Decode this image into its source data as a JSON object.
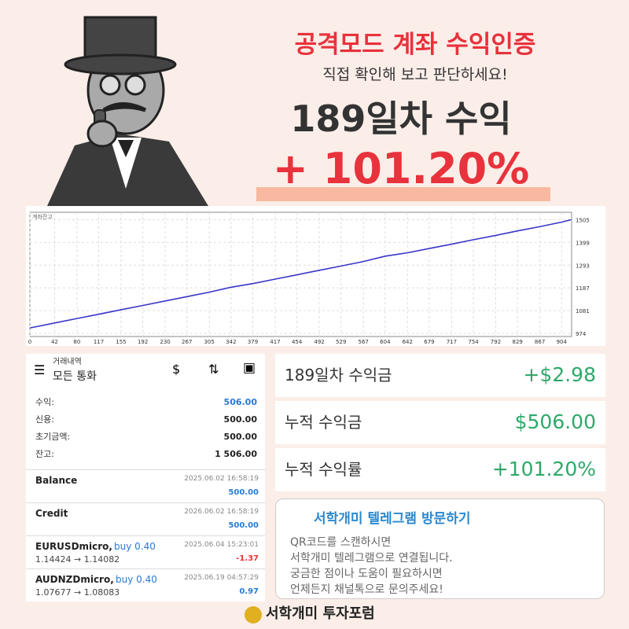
{
  "header": {
    "title": "공격모드 계좌 수익인증",
    "subtitle": "직접 확인해 보고 판단하세요!",
    "days": "189일차 수익",
    "return": "+ 101.20%"
  },
  "chart_data": {
    "type": "line",
    "title": "계좌잔고",
    "color": "#3a36c8",
    "grid": true,
    "x": [
      0,
      42,
      80,
      117,
      155,
      192,
      230,
      267,
      305,
      342,
      379,
      417,
      454,
      492,
      529,
      567,
      604,
      642,
      679,
      717,
      754,
      792,
      829,
      867,
      904,
      920
    ],
    "values": [
      1000,
      1023,
      1044,
      1064,
      1085,
      1105,
      1126,
      1146,
      1167,
      1190,
      1207,
      1228,
      1248,
      1269,
      1289,
      1310,
      1335,
      1351,
      1371,
      1391,
      1412,
      1432,
      1453,
      1473,
      1494,
      1505
    ],
    "xlim": [
      0,
      921
    ],
    "ylim": [
      960,
      1540
    ],
    "xticks": [
      0,
      42,
      80,
      117,
      155,
      192,
      230,
      267,
      305,
      342,
      379,
      417,
      454,
      492,
      529,
      567,
      604,
      642,
      679,
      717,
      754,
      792,
      829,
      867,
      904
    ],
    "yticks": [
      974,
      1081,
      1187,
      1293,
      1399,
      1505
    ]
  },
  "account": {
    "title": "거래내역",
    "subtitle": "모든 통화",
    "summary": [
      [
        "수익:",
        "506.00"
      ],
      [
        "신용:",
        "500.00"
      ],
      [
        "초기금액:",
        "500.00"
      ],
      [
        "잔고:",
        "1 506.00"
      ]
    ],
    "deals": [
      {
        "symbol": "Balance",
        "date": "2025.06.02 16:58:19",
        "amount": "500.00"
      },
      {
        "symbol": "Credit",
        "date": "2026.06.02 16:58:19",
        "amount": "500.00"
      },
      {
        "symbol": "EURUSDmicro,",
        "side": "buy 0.40",
        "prices": "1.14424 → 1.14082",
        "date": "2025.06.04 15:23:01",
        "amount": "-1.37"
      },
      {
        "symbol": "AUDNZDmicro,",
        "side": "buy 0.40",
        "prices": "1.07677 → 1.08083",
        "date": "2025.06.19 04:57:29",
        "amount": "0.97"
      }
    ]
  },
  "stats": [
    [
      "189일차 수익금",
      "+$2.98"
    ],
    [
      "누적 수익금",
      "$506.00"
    ],
    [
      "누적 수익률",
      "+101.20%"
    ]
  ],
  "telegram": {
    "title": "서학개미 텔레그램 방문하기",
    "lines": [
      "QR코드를 스캔하시면",
      "서학개미 텔레그램으로 연결됩니다.",
      "궁금한 점이나 도움이 필요하시면",
      "언제든지 채널톡으로 문의주세요!"
    ]
  },
  "footer": "서학개미 투자포럼"
}
